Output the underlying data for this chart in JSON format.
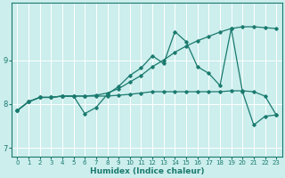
{
  "xlabel": "Humidex (Indice chaleur)",
  "bg_color": "#cceeed",
  "grid_color": "#ffffff",
  "line_color": "#1a7a6e",
  "xlim": [
    -0.5,
    23.5
  ],
  "ylim": [
    6.8,
    10.3
  ],
  "yticks": [
    7,
    8,
    9
  ],
  "xticks": [
    0,
    1,
    2,
    3,
    4,
    5,
    6,
    7,
    8,
    9,
    10,
    11,
    12,
    13,
    14,
    15,
    16,
    17,
    18,
    19,
    20,
    21,
    22,
    23
  ],
  "line1_x": [
    0,
    1,
    2,
    3,
    4,
    5,
    6,
    7,
    8,
    9,
    10,
    11,
    12,
    13,
    14,
    15,
    16,
    17,
    18,
    19,
    20,
    21,
    22,
    23
  ],
  "line1_y": [
    7.85,
    8.05,
    8.15,
    8.15,
    8.18,
    8.18,
    7.78,
    7.92,
    8.22,
    8.4,
    8.65,
    8.82,
    9.1,
    8.92,
    9.65,
    9.42,
    8.85,
    8.7,
    8.42,
    9.72,
    8.28,
    7.52,
    7.72,
    7.75
  ],
  "line2_x": [
    0,
    1,
    2,
    3,
    4,
    5,
    6,
    7,
    8,
    9,
    10,
    11,
    12,
    13,
    14,
    15,
    16,
    17,
    18,
    19,
    20,
    21,
    22,
    23
  ],
  "line2_y": [
    7.85,
    8.05,
    8.15,
    8.15,
    8.18,
    8.18,
    8.18,
    8.18,
    8.18,
    8.2,
    8.22,
    8.25,
    8.28,
    8.28,
    8.28,
    8.28,
    8.28,
    8.28,
    8.28,
    8.3,
    8.3,
    8.28,
    8.18,
    7.75
  ],
  "line3_x": [
    0,
    1,
    2,
    3,
    4,
    5,
    6,
    7,
    8,
    9,
    10,
    11,
    12,
    13,
    14,
    15,
    16,
    17,
    18,
    19,
    20,
    21,
    22,
    23
  ],
  "line3_y": [
    7.85,
    8.05,
    8.15,
    8.15,
    8.18,
    8.18,
    8.18,
    8.2,
    8.25,
    8.35,
    8.5,
    8.65,
    8.85,
    9.0,
    9.18,
    9.32,
    9.44,
    9.54,
    9.64,
    9.72,
    9.76,
    9.76,
    9.74,
    9.72
  ]
}
